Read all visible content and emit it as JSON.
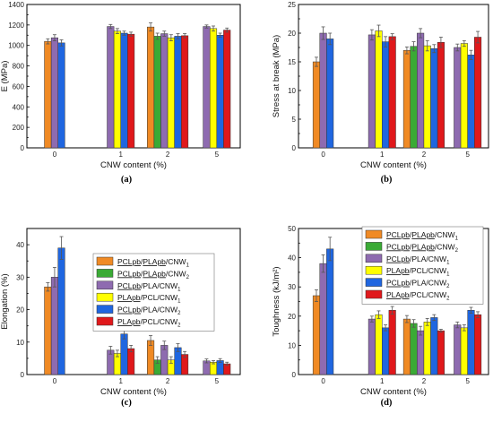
{
  "colors": {
    "s1": "#f08a24",
    "s2": "#3aaa35",
    "s3": "#8e6bb0",
    "s4": "#ffff00",
    "s5": "#1f66e0",
    "s6": "#e0181b"
  },
  "legend": {
    "s1": {
      "prefix": "",
      "u1": "PCLpb",
      "mid": "/",
      "u2": "PLApb",
      "rest": "/CNW",
      "sub": "1"
    },
    "s2": {
      "prefix": "",
      "u1": "PCLpb",
      "mid": "/",
      "u2": "PLApb",
      "rest": "/CNW",
      "sub": "2"
    },
    "s3": {
      "prefix": "",
      "u1": "PCLpb",
      "mid": "",
      "u2": "",
      "rest": "/PLA/CNW",
      "sub": "1"
    },
    "s4": {
      "prefix": "",
      "u1": "PLApb",
      "mid": "",
      "u2": "",
      "rest": "/PCL/CNW",
      "sub": "1"
    },
    "s5": {
      "prefix": "",
      "u1": "PCLpb",
      "mid": "",
      "u2": "",
      "rest": "/PLA/CNW",
      "sub": "2"
    },
    "s6": {
      "prefix": "",
      "u1": "PLApb",
      "mid": "",
      "u2": "",
      "rest": "/PCL/CNW",
      "sub": "2"
    }
  },
  "chart_data": [
    {
      "type": "bar",
      "caption": "(a)",
      "xlabel": "CNW content (%)",
      "ylabel": "E (MPa)",
      "categories": [
        "0",
        "1",
        "2",
        "5"
      ],
      "ylim": [
        0,
        1400
      ],
      "yticks": [
        0,
        200,
        400,
        600,
        800,
        1000,
        1200,
        1400
      ],
      "legend": false,
      "series": [
        {
          "key": "s1",
          "values": [
            1040,
            null,
            1180,
            null
          ],
          "errors": [
            25,
            null,
            40,
            null
          ]
        },
        {
          "key": "s2",
          "values": [
            null,
            null,
            1090,
            null
          ],
          "errors": [
            null,
            null,
            30,
            null
          ]
        },
        {
          "key": "s3",
          "values": [
            1075,
            1185,
            1115,
            1185
          ],
          "errors": [
            30,
            20,
            25,
            15
          ]
        },
        {
          "key": "s4",
          "values": [
            null,
            1140,
            1075,
            1165
          ],
          "errors": [
            null,
            25,
            30,
            25
          ]
        },
        {
          "key": "s5",
          "values": [
            1025,
            1120,
            1090,
            1100
          ],
          "errors": [
            30,
            20,
            25,
            20
          ]
        },
        {
          "key": "s6",
          "values": [
            null,
            1110,
            1095,
            1150
          ],
          "errors": [
            null,
            20,
            20,
            20
          ]
        }
      ]
    },
    {
      "type": "bar",
      "caption": "(b)",
      "xlabel": "CNW content (%)",
      "ylabel": "Stress at break (MPa)",
      "categories": [
        "0",
        "1",
        "2",
        "5"
      ],
      "ylim": [
        0,
        25
      ],
      "yticks": [
        0,
        5,
        10,
        15,
        20,
        25
      ],
      "legend": false,
      "series": [
        {
          "key": "s1",
          "values": [
            15.0,
            null,
            17.0,
            null
          ],
          "errors": [
            0.8,
            null,
            0.6,
            null
          ]
        },
        {
          "key": "s2",
          "values": [
            null,
            null,
            17.7,
            null
          ],
          "errors": [
            null,
            null,
            0.8,
            null
          ]
        },
        {
          "key": "s3",
          "values": [
            20.0,
            19.7,
            20.0,
            17.5
          ],
          "errors": [
            1.1,
            0.9,
            0.8,
            0.6
          ]
        },
        {
          "key": "s4",
          "values": [
            null,
            20.4,
            17.8,
            18.2
          ],
          "errors": [
            null,
            1.0,
            0.9,
            0.5
          ]
        },
        {
          "key": "s5",
          "values": [
            19.0,
            18.5,
            17.3,
            16.2
          ],
          "errors": [
            1.0,
            0.9,
            0.7,
            0.8
          ]
        },
        {
          "key": "s6",
          "values": [
            null,
            19.4,
            18.4,
            19.3
          ],
          "errors": [
            null,
            0.5,
            0.9,
            1.0
          ]
        }
      ]
    },
    {
      "type": "bar",
      "caption": "(c)",
      "xlabel": "CNW content (%)",
      "ylabel": "Elongation (%)",
      "categories": [
        "0",
        "1",
        "2",
        "5"
      ],
      "ylim": [
        0,
        45
      ],
      "yticks": [
        0,
        10,
        20,
        30,
        40
      ],
      "legend": true,
      "series": [
        {
          "key": "s1",
          "values": [
            27.0,
            null,
            10.5,
            null
          ],
          "errors": [
            1.3,
            null,
            1.5,
            null
          ]
        },
        {
          "key": "s2",
          "values": [
            null,
            null,
            4.5,
            null
          ],
          "errors": [
            null,
            null,
            1.0,
            null
          ]
        },
        {
          "key": "s3",
          "values": [
            30.0,
            7.5,
            9.0,
            4.2
          ],
          "errors": [
            3.0,
            1.2,
            1.3,
            0.6
          ]
        },
        {
          "key": "s4",
          "values": [
            null,
            6.5,
            4.5,
            3.8
          ],
          "errors": [
            null,
            1.0,
            1.0,
            0.5
          ]
        },
        {
          "key": "s5",
          "values": [
            39.0,
            12.5,
            8.3,
            4.3
          ],
          "errors": [
            3.5,
            1.5,
            1.2,
            0.6
          ]
        },
        {
          "key": "s6",
          "values": [
            null,
            8.0,
            6.2,
            3.3
          ],
          "errors": [
            null,
            1.0,
            0.9,
            0.5
          ]
        }
      ]
    },
    {
      "type": "bar",
      "caption": "(d)",
      "xlabel": "CNW content (%)",
      "ylabel": "Toughness (kJ/m²)",
      "categories": [
        "0",
        "1",
        "2",
        "5"
      ],
      "ylim": [
        0,
        50
      ],
      "yticks": [
        0,
        10,
        20,
        30,
        40,
        50
      ],
      "legend": true,
      "series": [
        {
          "key": "s1",
          "values": [
            27.0,
            null,
            19.0,
            null
          ],
          "errors": [
            2.0,
            null,
            1.2,
            null
          ]
        },
        {
          "key": "s2",
          "values": [
            null,
            null,
            17.5,
            null
          ],
          "errors": [
            null,
            null,
            1.3,
            null
          ]
        },
        {
          "key": "s3",
          "values": [
            38.0,
            19.0,
            15.0,
            17.0
          ],
          "errors": [
            3.0,
            1.0,
            1.5,
            1.0
          ]
        },
        {
          "key": "s4",
          "values": [
            null,
            20.5,
            18.0,
            16.0
          ],
          "errors": [
            null,
            1.3,
            1.2,
            1.0
          ]
        },
        {
          "key": "s5",
          "values": [
            43.0,
            16.0,
            19.5,
            22.0
          ],
          "errors": [
            4.0,
            1.0,
            1.0,
            1.0
          ]
        },
        {
          "key": "s6",
          "values": [
            null,
            22.0,
            15.0,
            20.5
          ],
          "errors": [
            null,
            1.3,
            0.5,
            1.0
          ]
        }
      ]
    }
  ]
}
